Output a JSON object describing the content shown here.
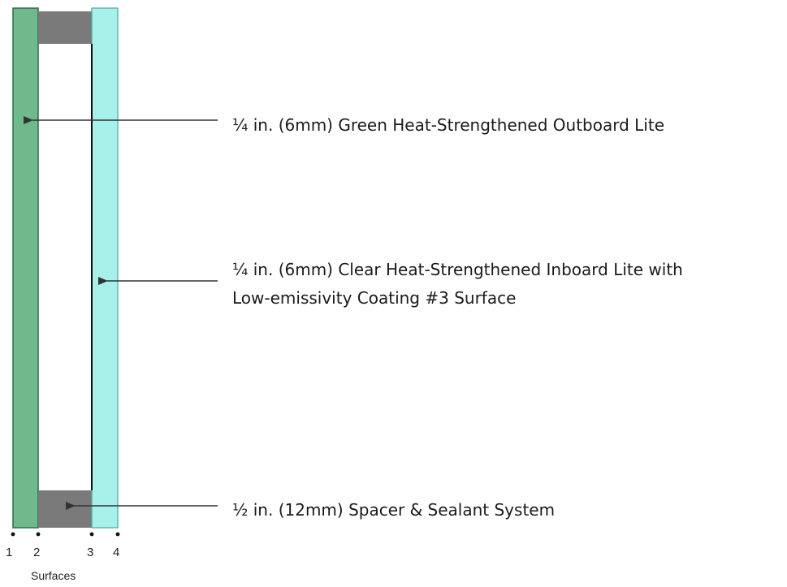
{
  "colors": {
    "outboard_glass": "#6fb98c",
    "outboard_edge": "#2f6e45",
    "inboard_glass": "#a8f0ea",
    "inboard_edge": "#4aa8a0",
    "spacer": "#7a7a7a",
    "arrow": "#333333",
    "coating_line": "#111111"
  },
  "labels": {
    "outboard": "¼ in. (6mm) Green Heat-Strengthened Outboard Lite",
    "inboard_line1": "¼ in. (6mm) Clear Heat-Strengthened Inboard Lite with",
    "inboard_line2": "Low-emissivity Coating #3 Surface",
    "spacer": "½ in. (12mm) Spacer & Sealant System"
  },
  "surfaces": {
    "numbers": [
      "1",
      "2",
      "3",
      "4"
    ],
    "title": "Surfaces"
  }
}
